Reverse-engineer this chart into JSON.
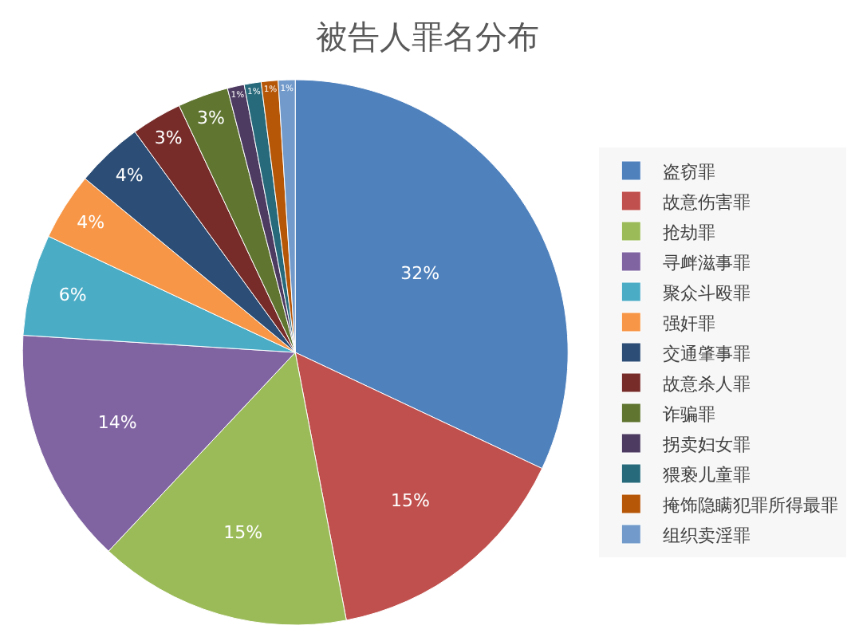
{
  "chart_data": {
    "type": "pie",
    "title": "被告人罪名分布",
    "categories": [
      "盗窃罪",
      "故意伤害罪",
      "抢劫罪",
      "寻衅滋事罪",
      "聚众斗殴罪",
      "强奸罪",
      "交通肇事罪",
      "故意杀人罪",
      "诈骗罪",
      "拐卖妇女罪",
      "猥亵儿童罪",
      "掩饰隐瞒犯罪所得最罪",
      "组织卖淫罪"
    ],
    "values": [
      32,
      15,
      15,
      14,
      6,
      4,
      4,
      3,
      3,
      1,
      1,
      1,
      1
    ],
    "colors": [
      "#4f81bd",
      "#c0504d",
      "#9bbb59",
      "#8064a2",
      "#4bacc6",
      "#f79646",
      "#2c4d75",
      "#772c2a",
      "#5f7530",
      "#4d3b62",
      "#276a7c",
      "#b65708",
      "#729aca"
    ],
    "value_labels": [
      "32%",
      "15%",
      "15%",
      "14%",
      "6%",
      "4%",
      "4%",
      "3%",
      "3%",
      "1%",
      "1%",
      "1%",
      "1%"
    ],
    "legend": "right"
  }
}
